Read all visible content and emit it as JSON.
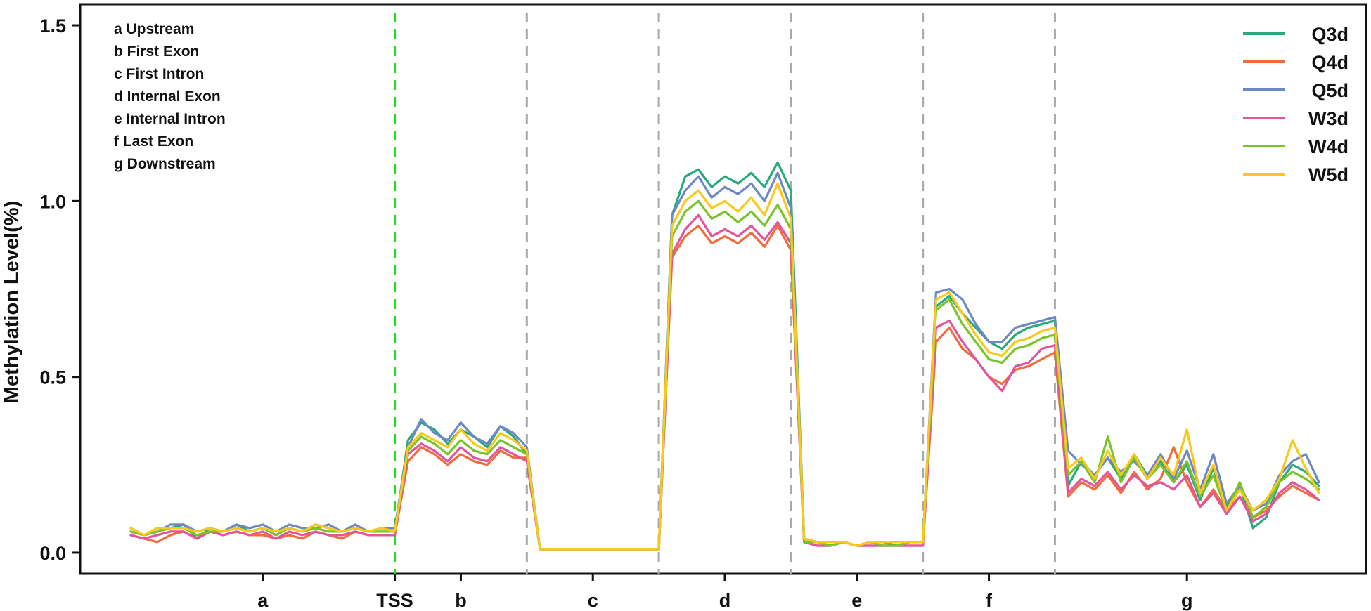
{
  "chart_data": {
    "type": "line",
    "title": "",
    "xlabel": "",
    "ylabel": "Methylation Level(%)",
    "ylim": [
      -0.06,
      1.56
    ],
    "yticks": [
      0.0,
      0.5,
      1.0,
      1.5
    ],
    "ytick_labels": [
      "0.0",
      "0.5",
      "1.0",
      "1.5"
    ],
    "grid": false,
    "legend_position": "top-right",
    "regions": [
      {
        "label": "a",
        "start": 0,
        "end": 20
      },
      {
        "label": "b",
        "start": 20,
        "end": 30
      },
      {
        "label": "c",
        "start": 30,
        "end": 40
      },
      {
        "label": "d",
        "start": 40,
        "end": 50
      },
      {
        "label": "e",
        "start": 50,
        "end": 60
      },
      {
        "label": "f",
        "start": 60,
        "end": 70
      },
      {
        "label": "g",
        "start": 70,
        "end": 90
      }
    ],
    "xtick_labels": [
      {
        "label": "a",
        "x": 10
      },
      {
        "label": "TSS",
        "x": 20
      },
      {
        "label": "b",
        "x": 25
      },
      {
        "label": "c",
        "x": 35
      },
      {
        "label": "d",
        "x": 45
      },
      {
        "label": "e",
        "x": 55
      },
      {
        "label": "f",
        "x": 65
      },
      {
        "label": "g",
        "x": 80
      }
    ],
    "boundaries": [
      {
        "x": 20,
        "color": "#22dd22",
        "name": "TSS"
      },
      {
        "x": 30,
        "color": "#aaaaaa",
        "name": "b-c"
      },
      {
        "x": 40,
        "color": "#aaaaaa",
        "name": "c-d"
      },
      {
        "x": 50,
        "color": "#aaaaaa",
        "name": "d-e"
      },
      {
        "x": 60,
        "color": "#aaaaaa",
        "name": "e-f"
      },
      {
        "x": 70,
        "color": "#aaaaaa",
        "name": "f-g"
      }
    ],
    "annotations": [
      "a Upstream",
      "b First Exon",
      "c First Intron",
      "d Internal Exon",
      "e Internal Intron",
      "f Last Exon",
      "g Downstream"
    ],
    "x": [
      0,
      1,
      2,
      3,
      4,
      5,
      6,
      7,
      8,
      9,
      10,
      11,
      12,
      13,
      14,
      15,
      16,
      17,
      18,
      19,
      20,
      21,
      22,
      23,
      24,
      25,
      26,
      27,
      28,
      29,
      30,
      31,
      32,
      33,
      34,
      35,
      36,
      37,
      38,
      39,
      40,
      41,
      42,
      43,
      44,
      45,
      46,
      47,
      48,
      49,
      50,
      51,
      52,
      53,
      54,
      55,
      56,
      57,
      58,
      59,
      60,
      61,
      62,
      63,
      64,
      65,
      66,
      67,
      68,
      69,
      70,
      71,
      72,
      73,
      74,
      75,
      76,
      77,
      78,
      79,
      80,
      81,
      82,
      83,
      84,
      85,
      86,
      87,
      88,
      89,
      90
    ],
    "series": [
      {
        "name": "Q3d",
        "color": "#2aa87f",
        "values": [
          0.07,
          0.05,
          0.06,
          0.07,
          0.08,
          0.04,
          0.07,
          0.06,
          0.08,
          0.06,
          0.07,
          0.05,
          0.07,
          0.06,
          0.08,
          0.07,
          0.06,
          0.07,
          0.06,
          0.07,
          0.06,
          0.32,
          0.37,
          0.35,
          0.31,
          0.35,
          0.33,
          0.3,
          0.36,
          0.33,
          0.28,
          0.01,
          0.01,
          0.01,
          0.01,
          0.01,
          0.01,
          0.01,
          0.01,
          0.01,
          0.01,
          0.96,
          1.07,
          1.09,
          1.04,
          1.07,
          1.05,
          1.08,
          1.04,
          1.11,
          1.03,
          0.04,
          0.03,
          0.03,
          0.03,
          0.02,
          0.03,
          0.03,
          0.02,
          0.03,
          0.03,
          0.7,
          0.73,
          0.68,
          0.64,
          0.6,
          0.58,
          0.62,
          0.64,
          0.65,
          0.66,
          0.19,
          0.26,
          0.22,
          0.27,
          0.21,
          0.28,
          0.22,
          0.26,
          0.2,
          0.25,
          0.15,
          0.24,
          0.13,
          0.19,
          0.07,
          0.1,
          0.2,
          0.25,
          0.23,
          0.19
        ]
      },
      {
        "name": "Q4d",
        "color": "#f26b3a",
        "values": [
          0.05,
          0.04,
          0.03,
          0.05,
          0.06,
          0.04,
          0.06,
          0.05,
          0.06,
          0.05,
          0.05,
          0.04,
          0.05,
          0.04,
          0.06,
          0.05,
          0.04,
          0.06,
          0.05,
          0.05,
          0.05,
          0.26,
          0.3,
          0.28,
          0.25,
          0.28,
          0.26,
          0.25,
          0.29,
          0.27,
          0.27,
          0.01,
          0.01,
          0.01,
          0.01,
          0.01,
          0.01,
          0.01,
          0.01,
          0.01,
          0.01,
          0.84,
          0.9,
          0.93,
          0.88,
          0.9,
          0.88,
          0.91,
          0.87,
          0.93,
          0.86,
          0.03,
          0.02,
          0.02,
          0.03,
          0.02,
          0.02,
          0.02,
          0.02,
          0.02,
          0.02,
          0.6,
          0.64,
          0.58,
          0.55,
          0.5,
          0.48,
          0.52,
          0.53,
          0.55,
          0.57,
          0.16,
          0.2,
          0.18,
          0.22,
          0.17,
          0.23,
          0.18,
          0.21,
          0.3,
          0.2,
          0.13,
          0.18,
          0.12,
          0.16,
          0.1,
          0.12,
          0.16,
          0.19,
          0.17,
          0.15
        ]
      },
      {
        "name": "Q5d",
        "color": "#6e88c5",
        "values": [
          0.06,
          0.05,
          0.06,
          0.08,
          0.08,
          0.06,
          0.07,
          0.06,
          0.08,
          0.07,
          0.08,
          0.06,
          0.08,
          0.07,
          0.07,
          0.08,
          0.06,
          0.08,
          0.06,
          0.07,
          0.07,
          0.3,
          0.38,
          0.34,
          0.32,
          0.37,
          0.33,
          0.31,
          0.36,
          0.34,
          0.3,
          0.01,
          0.01,
          0.01,
          0.01,
          0.01,
          0.01,
          0.01,
          0.01,
          0.01,
          0.01,
          0.96,
          1.03,
          1.07,
          1.01,
          1.04,
          1.02,
          1.05,
          1.0,
          1.08,
          0.98,
          0.04,
          0.03,
          0.03,
          0.03,
          0.02,
          0.03,
          0.03,
          0.03,
          0.03,
          0.03,
          0.74,
          0.75,
          0.72,
          0.65,
          0.6,
          0.6,
          0.64,
          0.65,
          0.66,
          0.67,
          0.29,
          0.25,
          0.22,
          0.27,
          0.23,
          0.26,
          0.22,
          0.28,
          0.21,
          0.29,
          0.18,
          0.28,
          0.14,
          0.19,
          0.12,
          0.14,
          0.22,
          0.26,
          0.28,
          0.2
        ]
      },
      {
        "name": "W3d",
        "color": "#e2559d",
        "values": [
          0.05,
          0.04,
          0.05,
          0.06,
          0.06,
          0.04,
          0.06,
          0.05,
          0.06,
          0.05,
          0.06,
          0.04,
          0.06,
          0.05,
          0.06,
          0.05,
          0.05,
          0.06,
          0.05,
          0.05,
          0.05,
          0.28,
          0.31,
          0.29,
          0.26,
          0.3,
          0.27,
          0.26,
          0.3,
          0.28,
          0.26,
          0.01,
          0.01,
          0.01,
          0.01,
          0.01,
          0.01,
          0.01,
          0.01,
          0.01,
          0.01,
          0.85,
          0.92,
          0.96,
          0.9,
          0.92,
          0.9,
          0.93,
          0.89,
          0.94,
          0.88,
          0.03,
          0.02,
          0.02,
          0.03,
          0.02,
          0.02,
          0.02,
          0.02,
          0.02,
          0.02,
          0.64,
          0.66,
          0.6,
          0.55,
          0.5,
          0.46,
          0.53,
          0.54,
          0.58,
          0.59,
          0.17,
          0.21,
          0.19,
          0.23,
          0.18,
          0.22,
          0.19,
          0.2,
          0.18,
          0.22,
          0.13,
          0.17,
          0.11,
          0.16,
          0.09,
          0.11,
          0.17,
          0.2,
          0.18,
          0.15
        ]
      },
      {
        "name": "W4d",
        "color": "#78c42a",
        "values": [
          0.06,
          0.05,
          0.06,
          0.07,
          0.07,
          0.05,
          0.06,
          0.06,
          0.07,
          0.06,
          0.07,
          0.05,
          0.07,
          0.06,
          0.07,
          0.06,
          0.06,
          0.07,
          0.06,
          0.06,
          0.06,
          0.29,
          0.33,
          0.31,
          0.28,
          0.32,
          0.29,
          0.28,
          0.32,
          0.3,
          0.28,
          0.01,
          0.01,
          0.01,
          0.01,
          0.01,
          0.01,
          0.01,
          0.01,
          0.01,
          0.01,
          0.9,
          0.97,
          1.0,
          0.95,
          0.97,
          0.94,
          0.97,
          0.93,
          0.99,
          0.92,
          0.03,
          0.03,
          0.02,
          0.03,
          0.02,
          0.03,
          0.02,
          0.02,
          0.03,
          0.03,
          0.69,
          0.72,
          0.65,
          0.6,
          0.55,
          0.54,
          0.58,
          0.59,
          0.61,
          0.62,
          0.22,
          0.26,
          0.2,
          0.33,
          0.2,
          0.27,
          0.21,
          0.25,
          0.2,
          0.26,
          0.16,
          0.22,
          0.12,
          0.2,
          0.1,
          0.13,
          0.2,
          0.23,
          0.21,
          0.18
        ]
      },
      {
        "name": "W5d",
        "color": "#f9c81a",
        "values": [
          0.07,
          0.05,
          0.07,
          0.07,
          0.07,
          0.06,
          0.07,
          0.06,
          0.07,
          0.06,
          0.07,
          0.06,
          0.07,
          0.06,
          0.08,
          0.07,
          0.06,
          0.07,
          0.06,
          0.07,
          0.06,
          0.3,
          0.34,
          0.32,
          0.3,
          0.35,
          0.31,
          0.29,
          0.34,
          0.32,
          0.29,
          0.01,
          0.01,
          0.01,
          0.01,
          0.01,
          0.01,
          0.01,
          0.01,
          0.01,
          0.01,
          0.93,
          1.0,
          1.03,
          0.98,
          1.0,
          0.97,
          1.01,
          0.96,
          1.05,
          0.95,
          0.04,
          0.03,
          0.03,
          0.03,
          0.02,
          0.03,
          0.03,
          0.03,
          0.03,
          0.03,
          0.72,
          0.74,
          0.68,
          0.62,
          0.57,
          0.56,
          0.6,
          0.61,
          0.63,
          0.64,
          0.24,
          0.27,
          0.21,
          0.29,
          0.22,
          0.28,
          0.21,
          0.27,
          0.22,
          0.35,
          0.17,
          0.25,
          0.12,
          0.18,
          0.12,
          0.15,
          0.21,
          0.32,
          0.24,
          0.17
        ]
      }
    ]
  }
}
